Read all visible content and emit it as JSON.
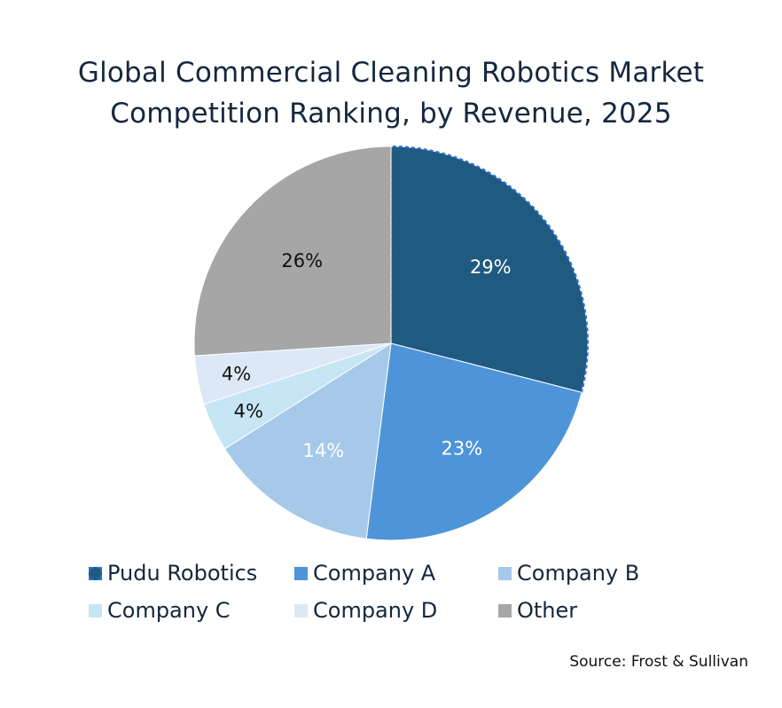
{
  "chart_data": {
    "type": "pie",
    "title_lines": [
      "Global Commercial Cleaning Robotics Market",
      "Competition Ranking, by Revenue, 2025"
    ],
    "slices": [
      {
        "label": "Pudu Robotics",
        "value": 29,
        "display": "29%",
        "color": "#1f5a80",
        "label_color": "#ffffff"
      },
      {
        "label": "Company A",
        "value": 23,
        "display": "23%",
        "color": "#4d95d8",
        "label_color": "#ffffff"
      },
      {
        "label": "Company B",
        "value": 14,
        "display": "14%",
        "color": "#a6c9ea",
        "label_color": "#ffffff"
      },
      {
        "label": "Company C",
        "value": 4,
        "display": "4%",
        "color": "#c7e6f5",
        "label_color": "#111111"
      },
      {
        "label": "Company D",
        "value": 4,
        "display": "4%",
        "color": "#dde8f6",
        "label_color": "#111111"
      },
      {
        "label": "Other",
        "value": 26,
        "display": "26%",
        "color": "#a6a6a6",
        "label_color": "#111111"
      }
    ],
    "start_angle_deg": 0,
    "direction": "clockwise",
    "legend_position": "bottom",
    "source": "Source: Frost & Sullivan"
  }
}
